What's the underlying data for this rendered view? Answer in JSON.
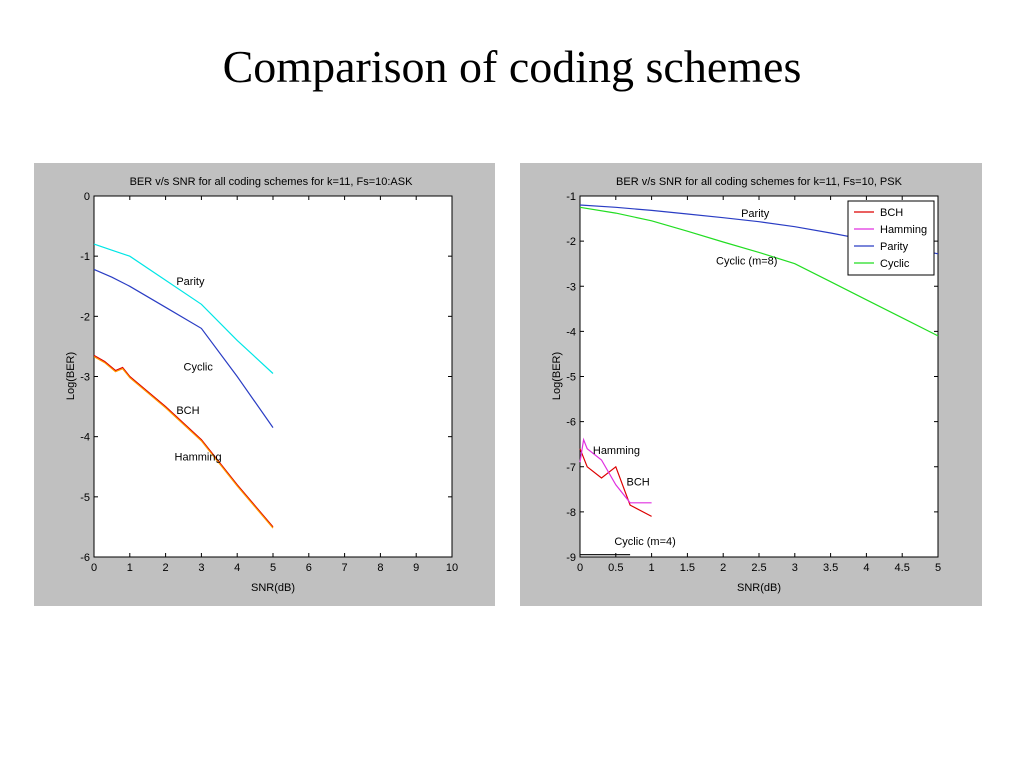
{
  "slide": {
    "title": "Comparison of coding schemes"
  },
  "chart_data": [
    {
      "type": "line",
      "title": "BER v/s SNR for all coding schemes for k=11, Fs=10:ASK",
      "xlabel": "SNR(dB)",
      "ylabel": "Log(BER)",
      "xlim": [
        0,
        10
      ],
      "ylim": [
        -6,
        0
      ],
      "xticks": [
        0,
        1,
        2,
        3,
        4,
        5,
        6,
        7,
        8,
        9,
        10
      ],
      "yticks": [
        0,
        -1,
        -2,
        -3,
        -4,
        -5,
        -6
      ],
      "grid": false,
      "legend": null,
      "series": [
        {
          "color": "#00e6e6",
          "x": [
            0,
            0.5,
            1,
            2,
            3,
            4,
            5
          ],
          "y": [
            -0.8,
            -0.9,
            -1.0,
            -1.4,
            -1.8,
            -2.4,
            -2.95
          ]
        },
        {
          "color": "#2a3dc4",
          "x": [
            0,
            0.5,
            1,
            2,
            3,
            4,
            5
          ],
          "y": [
            -1.22,
            -1.35,
            -1.5,
            -1.85,
            -2.2,
            -3.0,
            -3.85
          ]
        },
        {
          "color": "#dd0000",
          "x": [
            0,
            0.3,
            0.6,
            0.8,
            1,
            2,
            3,
            4,
            5
          ],
          "y": [
            -2.65,
            -2.75,
            -2.9,
            -2.85,
            -3.0,
            -3.5,
            -4.05,
            -4.8,
            -5.5
          ]
        },
        {
          "color": "#ff9900",
          "x": [
            0,
            0.3,
            0.6,
            0.8,
            1,
            2,
            3,
            4,
            5
          ],
          "y": [
            -2.67,
            -2.77,
            -2.92,
            -2.87,
            -3.02,
            -3.52,
            -4.07,
            -4.82,
            -5.52
          ]
        }
      ],
      "annotations": [
        {
          "text": "Parity",
          "x": 2.3,
          "y": -1.48
        },
        {
          "text": "Cyclic",
          "x": 2.5,
          "y": -2.9
        },
        {
          "text": "BCH",
          "x": 2.3,
          "y": -3.62
        },
        {
          "text": "Hamming",
          "x": 2.25,
          "y": -4.4
        }
      ]
    },
    {
      "type": "line",
      "title": "BER v/s SNR for all coding schemes for k=11, Fs=10, PSK",
      "xlabel": "SNR(dB)",
      "ylabel": "Log(BER)",
      "xlim": [
        0,
        5
      ],
      "ylim": [
        -9,
        -1
      ],
      "xticks": [
        0,
        0.5,
        1,
        1.5,
        2,
        2.5,
        3,
        3.5,
        4,
        4.5,
        5
      ],
      "yticks": [
        -1,
        -2,
        -3,
        -4,
        -5,
        -6,
        -7,
        -8,
        -9
      ],
      "grid": false,
      "legend": "top-right",
      "series": [
        {
          "name": "BCH",
          "color": "#dd0000",
          "x": [
            0,
            0.1,
            0.3,
            0.5,
            0.7,
            1.0
          ],
          "y": [
            -6.6,
            -7.0,
            -7.25,
            -7.0,
            -7.85,
            -8.1
          ]
        },
        {
          "name": "Hamming",
          "color": "#e030e0",
          "x": [
            0,
            0.05,
            0.1,
            0.3,
            0.5,
            0.7,
            1.0
          ],
          "y": [
            -6.9,
            -6.4,
            -6.6,
            -6.85,
            -7.4,
            -7.8,
            -7.8
          ]
        },
        {
          "name": "Parity",
          "color": "#2a3dc4",
          "x": [
            0,
            0.5,
            1,
            1.5,
            2,
            2.5,
            3,
            3.5,
            4,
            4.5,
            5
          ],
          "y": [
            -1.2,
            -1.25,
            -1.32,
            -1.4,
            -1.48,
            -1.57,
            -1.68,
            -1.82,
            -1.97,
            -2.12,
            -2.28
          ]
        },
        {
          "name": "Cyclic",
          "color": "#22dd22",
          "x": [
            0,
            0.5,
            1,
            1.5,
            2,
            2.5,
            3,
            3.5,
            4,
            4.5,
            5
          ],
          "y": [
            -1.25,
            -1.38,
            -1.55,
            -1.78,
            -2.02,
            -2.25,
            -2.5,
            -2.9,
            -3.3,
            -3.7,
            -4.1
          ]
        },
        {
          "color": "#000000",
          "x": [
            0,
            0.7
          ],
          "y": [
            -8.95,
            -8.95
          ]
        }
      ],
      "annotations": [
        {
          "text": "Parity",
          "x": 2.25,
          "y": -1.47
        },
        {
          "text": "Cyclic (m=8)",
          "x": 1.9,
          "y": -2.52
        },
        {
          "text": "Hamming",
          "x": 0.18,
          "y": -6.72
        },
        {
          "text": "BCH",
          "x": 0.65,
          "y": -7.42
        },
        {
          "text": "Cyclic (m=4)",
          "x": 0.48,
          "y": -8.73
        }
      ]
    }
  ]
}
